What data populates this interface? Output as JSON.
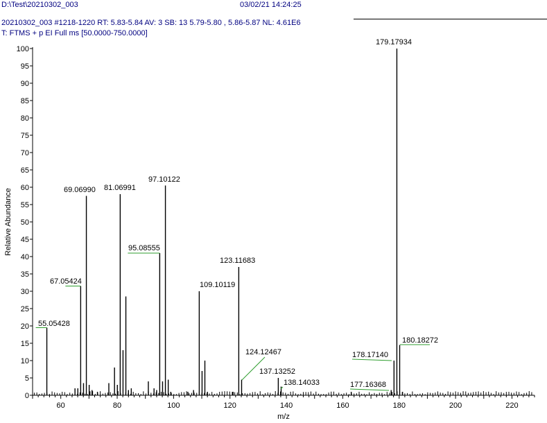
{
  "header": {
    "file_path": "D:\\Test\\20210302_003",
    "timestamp": "03/02/21 14:24:25",
    "scan_info": "20210302_003 #1218-1220  RT: 5.83-5.84  AV: 3  SB: 13  5.79-5.80 , 5.86-5.87  NL: 4.61E6",
    "filter": "T: FTMS + p EI Full ms [50.0000-750.0000]"
  },
  "chart_data": {
    "type": "bar",
    "xlabel": "m/z",
    "ylabel": "Relative Abundance",
    "xlim": [
      50,
      228
    ],
    "ylim": [
      0,
      100
    ],
    "x_ticks": [
      60,
      80,
      100,
      120,
      140,
      160,
      180,
      200,
      220
    ],
    "y_ticks": [
      0,
      5,
      10,
      15,
      20,
      25,
      30,
      35,
      40,
      45,
      50,
      55,
      60,
      65,
      70,
      75,
      80,
      85,
      90,
      95,
      100
    ],
    "colors": {
      "peaks": "#000000",
      "label_leader": "#2e9e2e"
    },
    "peaks": [
      {
        "mz": 55.05428,
        "abundance": 19.5,
        "label": "55.05428"
      },
      {
        "mz": 65.04,
        "abundance": 2.0
      },
      {
        "mz": 66.05,
        "abundance": 2.0
      },
      {
        "mz": 67.05424,
        "abundance": 31.5,
        "label": "67.05424"
      },
      {
        "mz": 68.06,
        "abundance": 3.5
      },
      {
        "mz": 69.0699,
        "abundance": 57.5,
        "label": "69.06990"
      },
      {
        "mz": 70.07,
        "abundance": 3.0
      },
      {
        "mz": 71.08,
        "abundance": 1.5
      },
      {
        "mz": 73.0,
        "abundance": 1.0
      },
      {
        "mz": 77.04,
        "abundance": 3.5
      },
      {
        "mz": 79.05,
        "abundance": 8.0
      },
      {
        "mz": 80.06,
        "abundance": 3.0
      },
      {
        "mz": 81.06991,
        "abundance": 58.0,
        "label": "81.06991"
      },
      {
        "mz": 82.07,
        "abundance": 13.0
      },
      {
        "mz": 83.08,
        "abundance": 28.5
      },
      {
        "mz": 84.0,
        "abundance": 1.5
      },
      {
        "mz": 85.0,
        "abundance": 2.0
      },
      {
        "mz": 91.05,
        "abundance": 4.0
      },
      {
        "mz": 93.07,
        "abundance": 2.0
      },
      {
        "mz": 94.0,
        "abundance": 1.5
      },
      {
        "mz": 95.08555,
        "abundance": 41.0,
        "label": "95.08555"
      },
      {
        "mz": 96.09,
        "abundance": 4.0
      },
      {
        "mz": 97.10122,
        "abundance": 60.5,
        "label": "97.10122"
      },
      {
        "mz": 98.1,
        "abundance": 4.5
      },
      {
        "mz": 99.0,
        "abundance": 1.0
      },
      {
        "mz": 105.07,
        "abundance": 1.0
      },
      {
        "mz": 107.08,
        "abundance": 1.5
      },
      {
        "mz": 109.10119,
        "abundance": 30.0,
        "label": "109.10119"
      },
      {
        "mz": 110.1,
        "abundance": 7.0
      },
      {
        "mz": 111.1,
        "abundance": 10.0
      },
      {
        "mz": 112.0,
        "abundance": 1.0
      },
      {
        "mz": 121.1,
        "abundance": 1.0
      },
      {
        "mz": 123.11683,
        "abundance": 37.0,
        "label": "123.11683"
      },
      {
        "mz": 124.12467,
        "abundance": 4.5,
        "label": "124.12467"
      },
      {
        "mz": 137.13252,
        "abundance": 5.0,
        "label": "137.13252"
      },
      {
        "mz": 138.14033,
        "abundance": 2.5,
        "label": "138.14033"
      },
      {
        "mz": 163.0,
        "abundance": 1.0
      },
      {
        "mz": 177.16368,
        "abundance": 1.5,
        "label": "177.16368"
      },
      {
        "mz": 178.1714,
        "abundance": 10.0,
        "label": "178.17140"
      },
      {
        "mz": 179.17934,
        "abundance": 100.0,
        "label": "179.17934"
      },
      {
        "mz": 180.18272,
        "abundance": 14.5,
        "label": "180.18272"
      },
      {
        "mz": 181.19,
        "abundance": 1.0
      }
    ]
  }
}
